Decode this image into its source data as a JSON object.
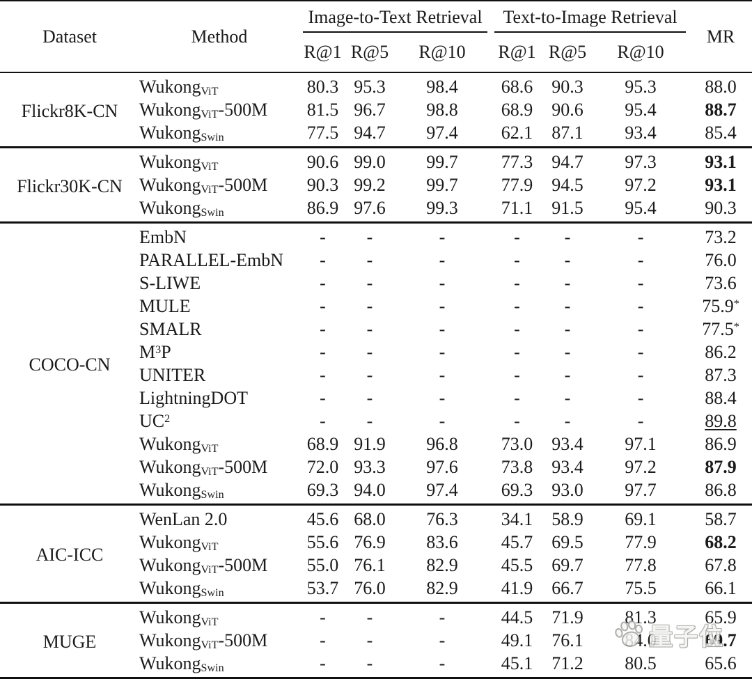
{
  "table": {
    "header": {
      "dataset": "Dataset",
      "method": "Method",
      "i2t": "Image-to-Text Retrieval",
      "t2i": "Text-to-Image Retrieval",
      "mr": "MR",
      "sub": [
        "R@1",
        "R@5",
        "R@10",
        "R@1",
        "R@5",
        "R@10"
      ]
    },
    "groups": [
      {
        "dataset": "Flickr8K-CN",
        "rows": [
          {
            "method": [
              {
                "t": "Wukong"
              },
              {
                "sub": "ViT"
              }
            ],
            "cells": [
              "80.3",
              "95.3",
              "98.4",
              "68.6",
              "90.3",
              "95.3"
            ],
            "mr": {
              "v": "88.0"
            }
          },
          {
            "method": [
              {
                "t": "Wukong"
              },
              {
                "sub": "ViT"
              },
              {
                "t": "-500M"
              }
            ],
            "cells": [
              "81.5",
              "96.7",
              "98.8",
              "68.9",
              "90.6",
              "95.4"
            ],
            "mr": {
              "v": "88.7",
              "bold": true
            }
          },
          {
            "method": [
              {
                "t": "Wukong"
              },
              {
                "sub": "Swin"
              }
            ],
            "cells": [
              "77.5",
              "94.7",
              "97.4",
              "62.1",
              "87.1",
              "93.4"
            ],
            "mr": {
              "v": "85.4"
            }
          }
        ]
      },
      {
        "dataset": "Flickr30K-CN",
        "rows": [
          {
            "method": [
              {
                "t": "Wukong"
              },
              {
                "sub": "ViT"
              }
            ],
            "cells": [
              "90.6",
              "99.0",
              "99.7",
              "77.3",
              "94.7",
              "97.3"
            ],
            "mr": {
              "v": "93.1",
              "bold": true
            }
          },
          {
            "method": [
              {
                "t": "Wukong"
              },
              {
                "sub": "ViT"
              },
              {
                "t": "-500M"
              }
            ],
            "cells": [
              "90.3",
              "99.2",
              "99.7",
              "77.9",
              "94.5",
              "97.2"
            ],
            "mr": {
              "v": "93.1",
              "bold": true
            }
          },
          {
            "method": [
              {
                "t": "Wukong"
              },
              {
                "sub": "Swin"
              }
            ],
            "cells": [
              "86.9",
              "97.6",
              "99.3",
              "71.1",
              "91.5",
              "95.4"
            ],
            "mr": {
              "v": "90.3"
            }
          }
        ]
      },
      {
        "dataset": "COCO-CN",
        "rows": [
          {
            "method": [
              {
                "t": "EmbN"
              }
            ],
            "cells": [
              "-",
              "-",
              "-",
              "-",
              "-",
              "-"
            ],
            "mr": {
              "v": "73.2"
            }
          },
          {
            "method": [
              {
                "t": "PARALLEL-EmbN"
              }
            ],
            "cells": [
              "-",
              "-",
              "-",
              "-",
              "-",
              "-"
            ],
            "mr": {
              "v": "76.0"
            }
          },
          {
            "method": [
              {
                "t": "S-LIWE"
              }
            ],
            "cells": [
              "-",
              "-",
              "-",
              "-",
              "-",
              "-"
            ],
            "mr": {
              "v": "73.6"
            }
          },
          {
            "method": [
              {
                "t": "MULE"
              }
            ],
            "cells": [
              "-",
              "-",
              "-",
              "-",
              "-",
              "-"
            ],
            "mr": {
              "v": "75.9",
              "sup": "*"
            }
          },
          {
            "method": [
              {
                "t": "SMALR"
              }
            ],
            "cells": [
              "-",
              "-",
              "-",
              "-",
              "-",
              "-"
            ],
            "mr": {
              "v": "77.5",
              "sup": "*"
            }
          },
          {
            "method": [
              {
                "t": "M"
              },
              {
                "sup": "3"
              },
              {
                "t": "P"
              }
            ],
            "cells": [
              "-",
              "-",
              "-",
              "-",
              "-",
              "-"
            ],
            "mr": {
              "v": "86.2"
            }
          },
          {
            "method": [
              {
                "t": "UNITER"
              }
            ],
            "cells": [
              "-",
              "-",
              "-",
              "-",
              "-",
              "-"
            ],
            "mr": {
              "v": "87.3"
            }
          },
          {
            "method": [
              {
                "t": "LightningDOT"
              }
            ],
            "cells": [
              "-",
              "-",
              "-",
              "-",
              "-",
              "-"
            ],
            "mr": {
              "v": "88.4"
            }
          },
          {
            "method": [
              {
                "t": "UC"
              },
              {
                "sup": "2"
              }
            ],
            "cells": [
              "-",
              "-",
              "-",
              "-",
              "-",
              "-"
            ],
            "mr": {
              "v": "89.8",
              "underline": true
            }
          },
          {
            "method": [
              {
                "t": "Wukong"
              },
              {
                "sub": "ViT"
              }
            ],
            "cells": [
              "68.9",
              "91.9",
              "96.8",
              "73.0",
              "93.4",
              "97.1"
            ],
            "mr": {
              "v": "86.9"
            }
          },
          {
            "method": [
              {
                "t": "Wukong"
              },
              {
                "sub": "ViT"
              },
              {
                "t": "-500M"
              }
            ],
            "cells": [
              "72.0",
              "93.3",
              "97.6",
              "73.8",
              "93.4",
              "97.2"
            ],
            "mr": {
              "v": "87.9",
              "bold": true
            }
          },
          {
            "method": [
              {
                "t": "Wukong"
              },
              {
                "sub": "Swin"
              }
            ],
            "cells": [
              "69.3",
              "94.0",
              "97.4",
              "69.3",
              "93.0",
              "97.7"
            ],
            "mr": {
              "v": "86.8"
            }
          }
        ]
      },
      {
        "dataset": "AIC-ICC",
        "rows": [
          {
            "method": [
              {
                "t": "WenLan 2.0"
              }
            ],
            "cells": [
              "45.6",
              "68.0",
              "76.3",
              "34.1",
              "58.9",
              "69.1"
            ],
            "mr": {
              "v": "58.7"
            }
          },
          {
            "method": [
              {
                "t": "Wukong"
              },
              {
                "sub": "ViT"
              }
            ],
            "cells": [
              "55.6",
              "76.9",
              "83.6",
              "45.7",
              "69.5",
              "77.9"
            ],
            "mr": {
              "v": "68.2",
              "bold": true
            }
          },
          {
            "method": [
              {
                "t": "Wukong"
              },
              {
                "sub": "ViT"
              },
              {
                "t": "-500M"
              }
            ],
            "cells": [
              "55.0",
              "76.1",
              "82.9",
              "45.5",
              "69.7",
              "77.8"
            ],
            "mr": {
              "v": "67.8"
            }
          },
          {
            "method": [
              {
                "t": "Wukong"
              },
              {
                "sub": "Swin"
              }
            ],
            "cells": [
              "53.7",
              "76.0",
              "82.9",
              "41.9",
              "66.7",
              "75.5"
            ],
            "mr": {
              "v": "66.1"
            }
          }
        ]
      },
      {
        "dataset": "MUGE",
        "rows": [
          {
            "method": [
              {
                "t": "Wukong"
              },
              {
                "sub": "ViT"
              }
            ],
            "cells": [
              "-",
              "-",
              "-",
              "44.5",
              "71.9",
              "81.3"
            ],
            "mr": {
              "v": "65.9"
            }
          },
          {
            "method": [
              {
                "t": "Wukong"
              },
              {
                "sub": "ViT"
              },
              {
                "t": "-500M"
              }
            ],
            "cells": [
              "-",
              "-",
              "-",
              "49.1",
              "76.1",
              "84.0"
            ],
            "mr": {
              "v": "69.7",
              "bold": true
            }
          },
          {
            "method": [
              {
                "t": "Wukong"
              },
              {
                "sub": "Swin"
              }
            ],
            "cells": [
              "-",
              "-",
              "-",
              "45.1",
              "71.2",
              "80.5"
            ],
            "mr": {
              "v": "65.6"
            }
          }
        ]
      }
    ]
  },
  "watermark": {
    "text": "量子位"
  }
}
